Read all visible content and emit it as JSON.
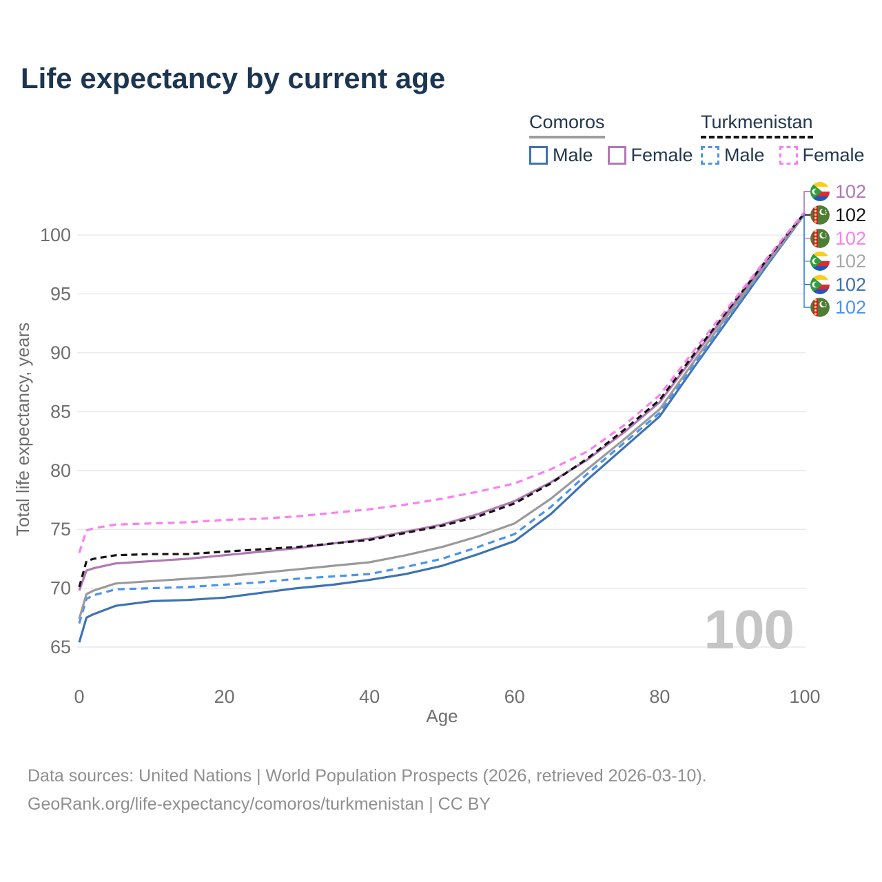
{
  "title": "Life expectancy by current age",
  "legend": {
    "groups": [
      {
        "name": "Comoros",
        "style": "solid",
        "underline_color": "#9e9e9e",
        "items": [
          {
            "label": "Male",
            "color": "#3d72b4",
            "dashed": false
          },
          {
            "label": "Female",
            "color": "#b277b4",
            "dashed": false
          }
        ]
      },
      {
        "name": "Turkmenistan",
        "style": "dashed",
        "underline_color": "#141414",
        "items": [
          {
            "label": "Male",
            "color": "#4a94ee",
            "dashed": true
          },
          {
            "label": "Female",
            "color": "#fb7ff0",
            "dashed": true
          }
        ]
      }
    ]
  },
  "chart_data": {
    "type": "line",
    "title": "Life expectancy by current age",
    "xlabel": "Age",
    "ylabel": "Total life expectancy, years",
    "x_ticks": [
      0,
      20,
      40,
      60,
      80,
      100
    ],
    "y_ticks": [
      65,
      70,
      75,
      80,
      85,
      90,
      95,
      100
    ],
    "xlim": [
      0,
      100
    ],
    "ylim": [
      65,
      103
    ],
    "grid": "horizontal",
    "legend_position": "top-right",
    "x": [
      0,
      1,
      2,
      5,
      10,
      15,
      20,
      25,
      30,
      35,
      40,
      45,
      50,
      55,
      60,
      65,
      70,
      75,
      80,
      85,
      90,
      95,
      100
    ],
    "series": [
      {
        "name": "Comoros Male",
        "country": "Comoros",
        "sex": "male",
        "color": "#3d72b4",
        "dash": false,
        "values": [
          65.4,
          67.5,
          67.8,
          68.5,
          68.9,
          69.0,
          69.2,
          69.6,
          70.0,
          70.3,
          70.7,
          71.2,
          71.9,
          72.9,
          74.0,
          76.3,
          79.2,
          81.9,
          84.6,
          89.0,
          93.3,
          97.6,
          101.8
        ]
      },
      {
        "name": "Turkmenistan Male",
        "country": "Turkmenistan",
        "sex": "male",
        "color": "#4a94ee",
        "dash": true,
        "values": [
          67.0,
          69.1,
          69.4,
          69.9,
          70.0,
          70.1,
          70.3,
          70.5,
          70.8,
          71.0,
          71.2,
          71.8,
          72.5,
          73.5,
          74.6,
          76.9,
          79.7,
          82.3,
          84.9,
          89.2,
          93.5,
          97.7,
          101.8
        ]
      },
      {
        "name": "Comoros Total",
        "country": "Comoros",
        "sex": "both",
        "color": "#9a9a9a",
        "dash": false,
        "values": [
          67.4,
          69.5,
          69.8,
          70.4,
          70.6,
          70.8,
          71.0,
          71.3,
          71.6,
          71.9,
          72.2,
          72.8,
          73.5,
          74.4,
          75.5,
          77.6,
          80.1,
          82.6,
          85.2,
          89.5,
          93.7,
          97.8,
          101.8
        ]
      },
      {
        "name": "Comoros Female",
        "country": "Comoros",
        "sex": "female",
        "color": "#b277b4",
        "dash": false,
        "values": [
          69.8,
          71.5,
          71.7,
          72.1,
          72.3,
          72.5,
          72.8,
          73.1,
          73.4,
          73.8,
          74.2,
          74.8,
          75.4,
          76.3,
          77.4,
          79.0,
          80.9,
          83.2,
          85.8,
          89.9,
          94.0,
          98.0,
          101.9
        ]
      },
      {
        "name": "Turkmenistan Total",
        "country": "Turkmenistan",
        "sex": "both",
        "color": "#141414",
        "dash": true,
        "values": [
          70.1,
          72.3,
          72.5,
          72.8,
          72.9,
          72.9,
          73.1,
          73.3,
          73.5,
          73.8,
          74.1,
          74.7,
          75.3,
          76.1,
          77.2,
          78.9,
          81.0,
          83.4,
          86.0,
          90.1,
          94.1,
          98.1,
          101.9
        ]
      },
      {
        "name": "Turkmenistan Female",
        "country": "Turkmenistan",
        "sex": "female",
        "color": "#fb7ff0",
        "dash": true,
        "values": [
          73.0,
          74.9,
          75.1,
          75.4,
          75.5,
          75.6,
          75.8,
          75.9,
          76.1,
          76.4,
          76.7,
          77.1,
          77.6,
          78.2,
          78.9,
          80.1,
          81.6,
          83.8,
          86.4,
          90.4,
          94.3,
          98.2,
          102.0
        ]
      }
    ]
  },
  "end_labels": [
    {
      "flag": "comoros",
      "series": "Comoros Female",
      "value": "102",
      "color": "#b277b4"
    },
    {
      "flag": "turkmenistan",
      "series": "Turkmenistan Total",
      "value": "102",
      "color": "#141414"
    },
    {
      "flag": "turkmenistan",
      "series": "Turkmenistan Female",
      "value": "102",
      "color": "#fb7ff0"
    },
    {
      "flag": "comoros",
      "series": "Comoros Total",
      "value": "102",
      "color": "#a8a8a8"
    },
    {
      "flag": "comoros",
      "series": "Comoros Male",
      "value": "102",
      "color": "#3d72b4"
    },
    {
      "flag": "turkmenistan",
      "series": "Turkmenistan Male",
      "value": "102",
      "color": "#4a94ee"
    }
  ],
  "watermark": "100",
  "footer": {
    "line1": "Data sources: United Nations | World Population Prospects (2026, retrieved 2026-03-10).",
    "line2": "GeoRank.org/life-expectancy/comoros/turkmenistan | CC BY"
  }
}
